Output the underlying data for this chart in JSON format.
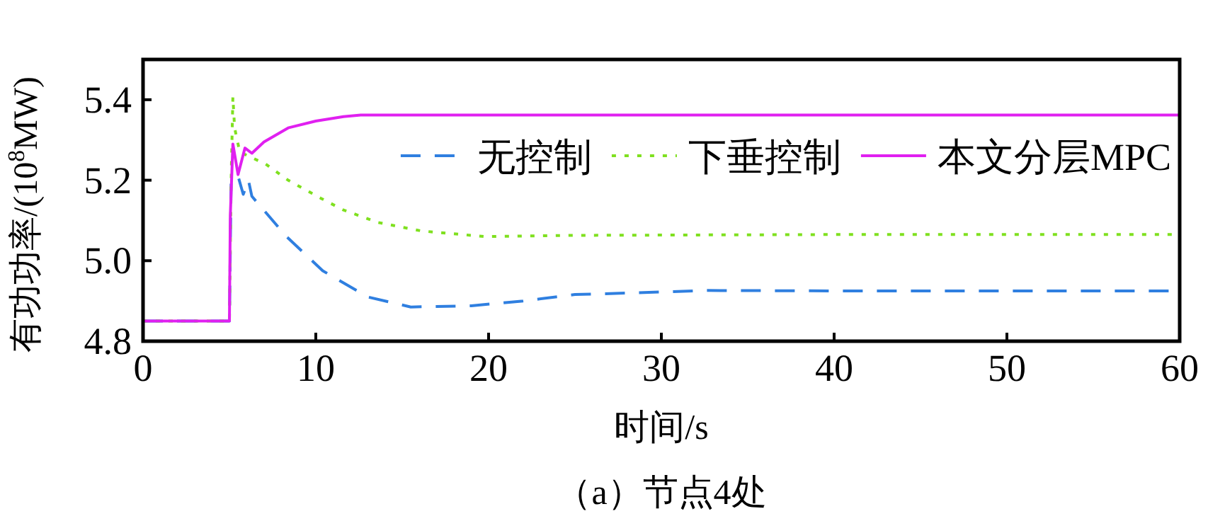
{
  "chart_data": {
    "type": "line",
    "xlabel": "时间/s",
    "ylabel": "有功功率/(10$^{8}$MW)",
    "annotations": [
      "（a）节点4处"
    ],
    "xlim": [
      0,
      60
    ],
    "ylim": [
      4.8,
      5.5
    ],
    "xticks": [
      0,
      10,
      20,
      30,
      40,
      50,
      60
    ],
    "yticks": [
      4.8,
      {
        "value": 5,
        "label": "5.0"
      },
      5.2,
      5.4
    ],
    "legend": "top right",
    "grid": false,
    "series": [
      {
        "name": "无控制",
        "color": "#2f7fe0",
        "line_style": "dashed",
        "x": [
          0,
          5,
          5.1,
          5.5,
          5.8,
          6.1,
          6.3,
          7.1,
          8.3,
          10.4,
          13,
          15.5,
          19,
          22,
          25,
          28.4,
          32.5,
          40,
          50,
          60
        ],
        "values": [
          4.85,
          4.85,
          5.2,
          5.21,
          5.165,
          5.2,
          5.16,
          5.12,
          5.06,
          4.975,
          4.91,
          4.885,
          4.888,
          4.9,
          4.916,
          4.92,
          4.926,
          4.925,
          4.925,
          4.925
        ]
      },
      {
        "name": "下垂控制",
        "color": "#7fe01f",
        "line_style": "dotted",
        "x": [
          0,
          5,
          5.1,
          5.2,
          5.3,
          5.6,
          7.1,
          8.4,
          10.3,
          11.6,
          13.6,
          16.1,
          19.8,
          25,
          40,
          60
        ],
        "values": [
          4.85,
          4.85,
          5.2,
          5.407,
          5.33,
          5.27,
          5.24,
          5.2,
          5.155,
          5.126,
          5.095,
          5.074,
          5.06,
          5.063,
          5.065,
          5.065
        ]
      },
      {
        "name": "本文分层MPC",
        "color": "#e020f0",
        "line_style": "solid",
        "x": [
          0,
          5,
          5.05,
          5.2,
          5.5,
          5.9,
          6.3,
          7,
          8.4,
          10,
          11.6,
          12.6,
          20,
          40,
          60
        ],
        "values": [
          4.85,
          4.85,
          5.11,
          5.29,
          5.214,
          5.28,
          5.267,
          5.295,
          5.33,
          5.347,
          5.358,
          5.362,
          5.362,
          5.362,
          5.362
        ]
      }
    ]
  }
}
